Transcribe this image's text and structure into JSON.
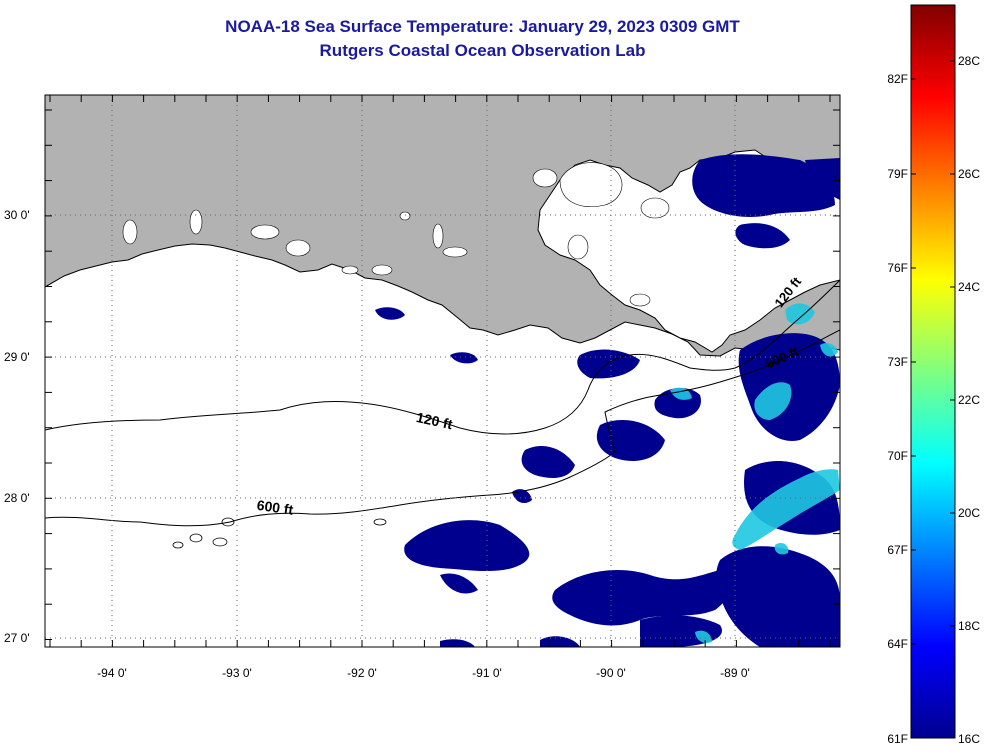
{
  "title": {
    "line1": "NOAA-18 Sea Surface Temperature:  January 29, 2023 0309 GMT",
    "line2": "Rutgers Coastal Ocean Observation Lab"
  },
  "map": {
    "latitude_labels": [
      "30 0'",
      "29 0'",
      "28 0'",
      "27 0'"
    ],
    "longitude_labels": [
      "-94 0'",
      "-93 0'",
      "-92 0'",
      "-91 0'",
      "-90 0'",
      "-89 0'"
    ],
    "grid": "dotted",
    "land_color": "#b2b2b2",
    "cloud_color": "#ffffff",
    "isobaths": [
      {
        "label": "120 ft",
        "feet": 120
      },
      {
        "label": "600 ft",
        "feet": 600
      }
    ],
    "isobath_label_120_east": "120 ft",
    "isobath_label_600_east": "600 ft"
  },
  "colorbar": {
    "fahrenheit_labels": [
      "82F",
      "79F",
      "76F",
      "73F",
      "70F",
      "67F",
      "64F",
      "61F"
    ],
    "celsius_labels": [
      "28C",
      "26C",
      "24C",
      "22C",
      "20C",
      "18C",
      "16C"
    ],
    "min_celsius": 16,
    "max_celsius": 29,
    "colormap": "jet"
  }
}
